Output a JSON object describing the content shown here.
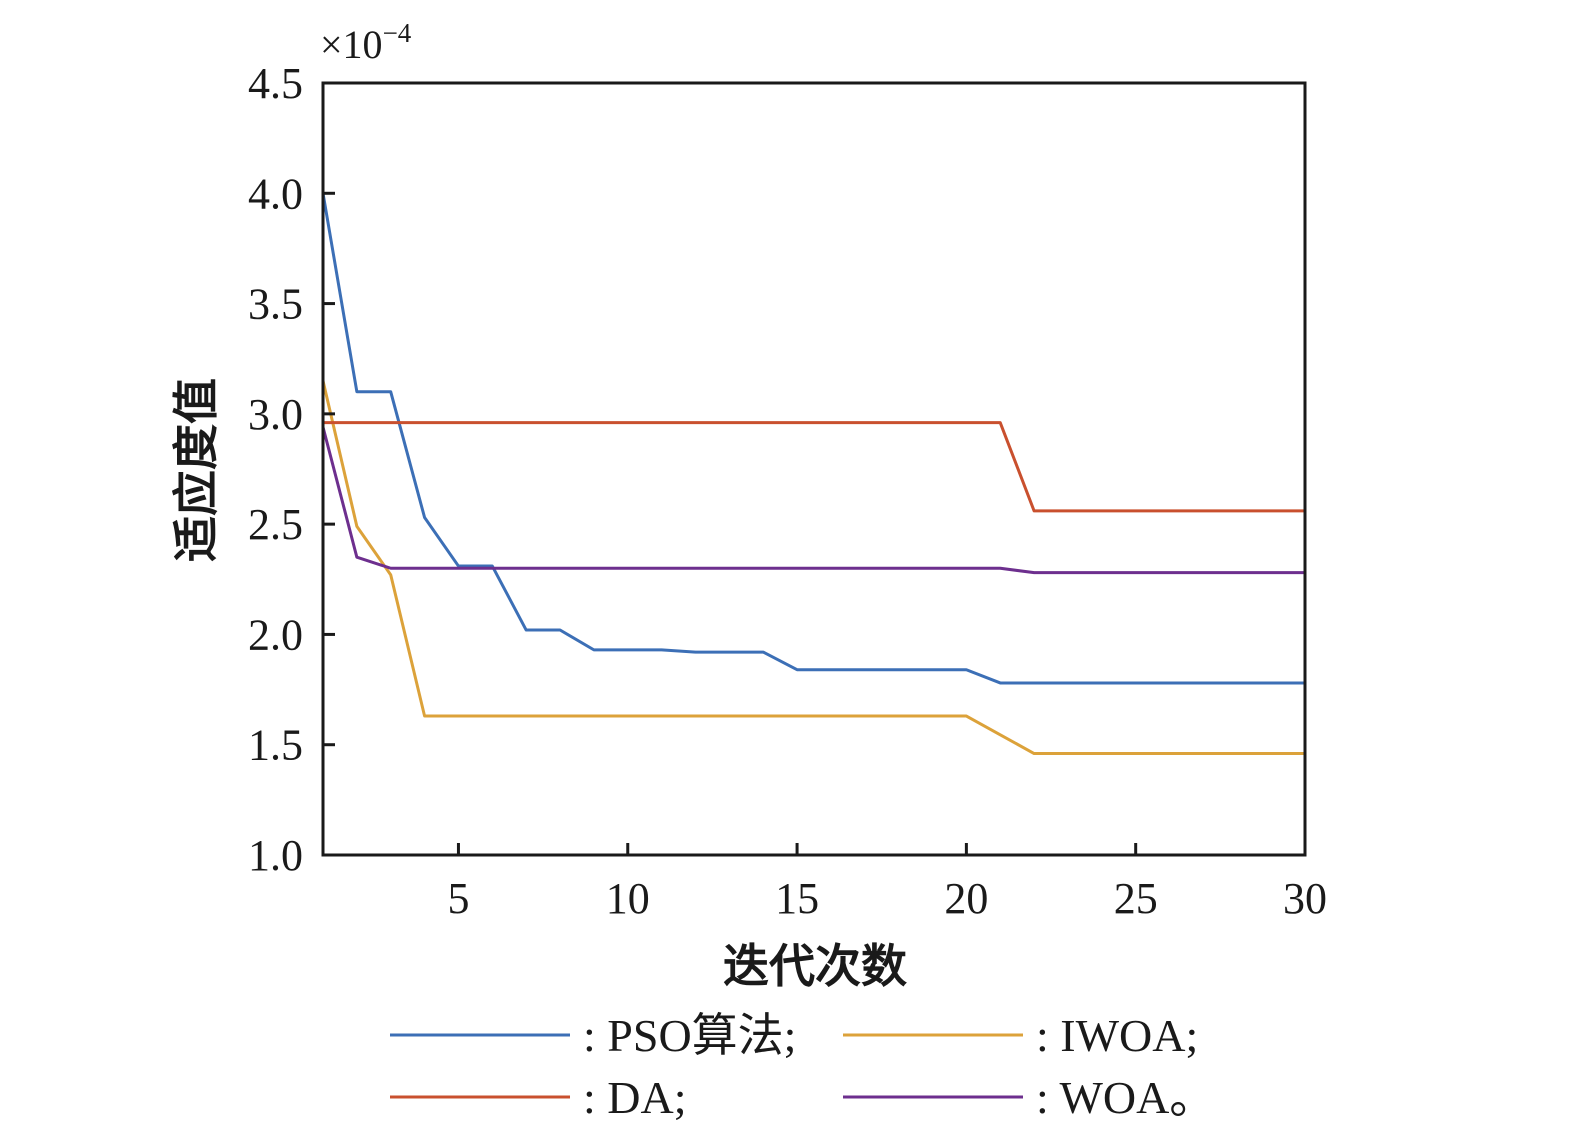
{
  "chart_data": {
    "type": "line",
    "title": "",
    "xlabel": "迭代次数",
    "ylabel": "适应度值",
    "y_multiplier": {
      "base": "×10",
      "exponent": "−4"
    },
    "xlim": [
      1,
      30
    ],
    "ylim": [
      1.0,
      4.5
    ],
    "x_ticks": [
      5,
      10,
      15,
      20,
      25,
      30
    ],
    "x_tick_labels": [
      "5",
      "10",
      "15",
      "20",
      "25",
      "30"
    ],
    "y_ticks": [
      1.0,
      1.5,
      2.0,
      2.5,
      3.0,
      3.5,
      4.0,
      4.5
    ],
    "y_tick_labels": [
      "1.0",
      "1.5",
      "2.0",
      "2.5",
      "3.0",
      "3.5",
      "4.0",
      "4.5"
    ],
    "grid": false,
    "legend_position": "bottom",
    "x": [
      1,
      2,
      3,
      4,
      5,
      6,
      7,
      8,
      9,
      10,
      11,
      12,
      13,
      14,
      15,
      16,
      17,
      18,
      19,
      20,
      21,
      22,
      23,
      24,
      25,
      26,
      27,
      28,
      29,
      30
    ],
    "series": [
      {
        "name": ": PSO算法;",
        "color": "#3c6fb6",
        "values": [
          4.0,
          3.1,
          3.1,
          2.53,
          2.31,
          2.31,
          2.02,
          2.02,
          1.93,
          1.93,
          1.93,
          1.92,
          1.92,
          1.92,
          1.84,
          1.84,
          1.84,
          1.84,
          1.84,
          1.84,
          1.78,
          1.78,
          1.78,
          1.78,
          1.78,
          1.78,
          1.78,
          1.78,
          1.78,
          1.78
        ]
      },
      {
        "name": ": IWOA;",
        "color": "#dca23a",
        "values": [
          3.15,
          2.49,
          2.27,
          1.63,
          1.63,
          1.63,
          1.63,
          1.63,
          1.63,
          1.63,
          1.63,
          1.63,
          1.63,
          1.63,
          1.63,
          1.63,
          1.63,
          1.63,
          1.63,
          1.63,
          1.545,
          1.46,
          1.46,
          1.46,
          1.46,
          1.46,
          1.46,
          1.46,
          1.46,
          1.46
        ]
      },
      {
        "name": ": DA;",
        "color": "#c9502e",
        "values": [
          2.96,
          2.96,
          2.96,
          2.96,
          2.96,
          2.96,
          2.96,
          2.96,
          2.96,
          2.96,
          2.96,
          2.96,
          2.96,
          2.96,
          2.96,
          2.96,
          2.96,
          2.96,
          2.96,
          2.96,
          2.96,
          2.56,
          2.56,
          2.56,
          2.56,
          2.56,
          2.56,
          2.56,
          2.56,
          2.56
        ]
      },
      {
        "name": ": WOA。",
        "color": "#6d2f8e",
        "values": [
          2.94,
          2.35,
          2.3,
          2.3,
          2.3,
          2.3,
          2.3,
          2.3,
          2.3,
          2.3,
          2.3,
          2.3,
          2.3,
          2.3,
          2.3,
          2.3,
          2.3,
          2.3,
          2.3,
          2.3,
          2.3,
          2.28,
          2.28,
          2.28,
          2.28,
          2.28,
          2.28,
          2.28,
          2.28,
          2.28
        ]
      }
    ]
  }
}
